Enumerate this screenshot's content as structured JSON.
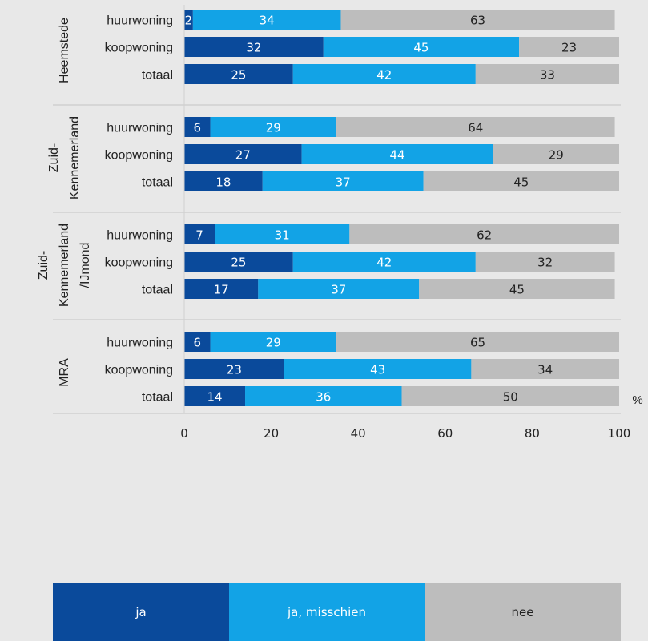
{
  "colors": {
    "ja": "#0a4a9b",
    "misschien": "#12a3e6",
    "nee": "#bdbdbd",
    "background": "#e8e8e8"
  },
  "chart_data": {
    "type": "bar",
    "orientation": "horizontal",
    "stacked": true,
    "unit": "%",
    "xlim": [
      0,
      100
    ],
    "xticks": [
      "0",
      "20",
      "40",
      "60",
      "80",
      "100"
    ],
    "groups": [
      {
        "label": [
          "Heemstede"
        ],
        "rows": [
          {
            "label": "huurwoning",
            "values": [
              2,
              34,
              63
            ]
          },
          {
            "label": "koopwoning",
            "values": [
              32,
              45,
              23
            ]
          },
          {
            "label": "totaal",
            "values": [
              25,
              42,
              33
            ]
          }
        ]
      },
      {
        "label": [
          "Zuid-",
          "Kennemerland"
        ],
        "rows": [
          {
            "label": "huurwoning",
            "values": [
              6,
              29,
              64
            ]
          },
          {
            "label": "koopwoning",
            "values": [
              27,
              44,
              29
            ]
          },
          {
            "label": "totaal",
            "values": [
              18,
              37,
              45
            ]
          }
        ]
      },
      {
        "label": [
          "Zuid-",
          "Kennemerland",
          "/IJmond"
        ],
        "rows": [
          {
            "label": "huurwoning",
            "values": [
              7,
              31,
              62
            ]
          },
          {
            "label": "koopwoning",
            "values": [
              25,
              42,
              32
            ]
          },
          {
            "label": "totaal",
            "values": [
              17,
              37,
              45
            ]
          }
        ]
      },
      {
        "label": [
          "MRA"
        ],
        "rows": [
          {
            "label": "huurwoning",
            "values": [
              6,
              29,
              65
            ]
          },
          {
            "label": "koopwoning",
            "values": [
              23,
              43,
              34
            ]
          },
          {
            "label": "totaal",
            "values": [
              14,
              36,
              50
            ]
          }
        ]
      }
    ],
    "series": [
      {
        "name": "ja"
      },
      {
        "name": "ja, misschien"
      },
      {
        "name": "nee"
      }
    ]
  }
}
